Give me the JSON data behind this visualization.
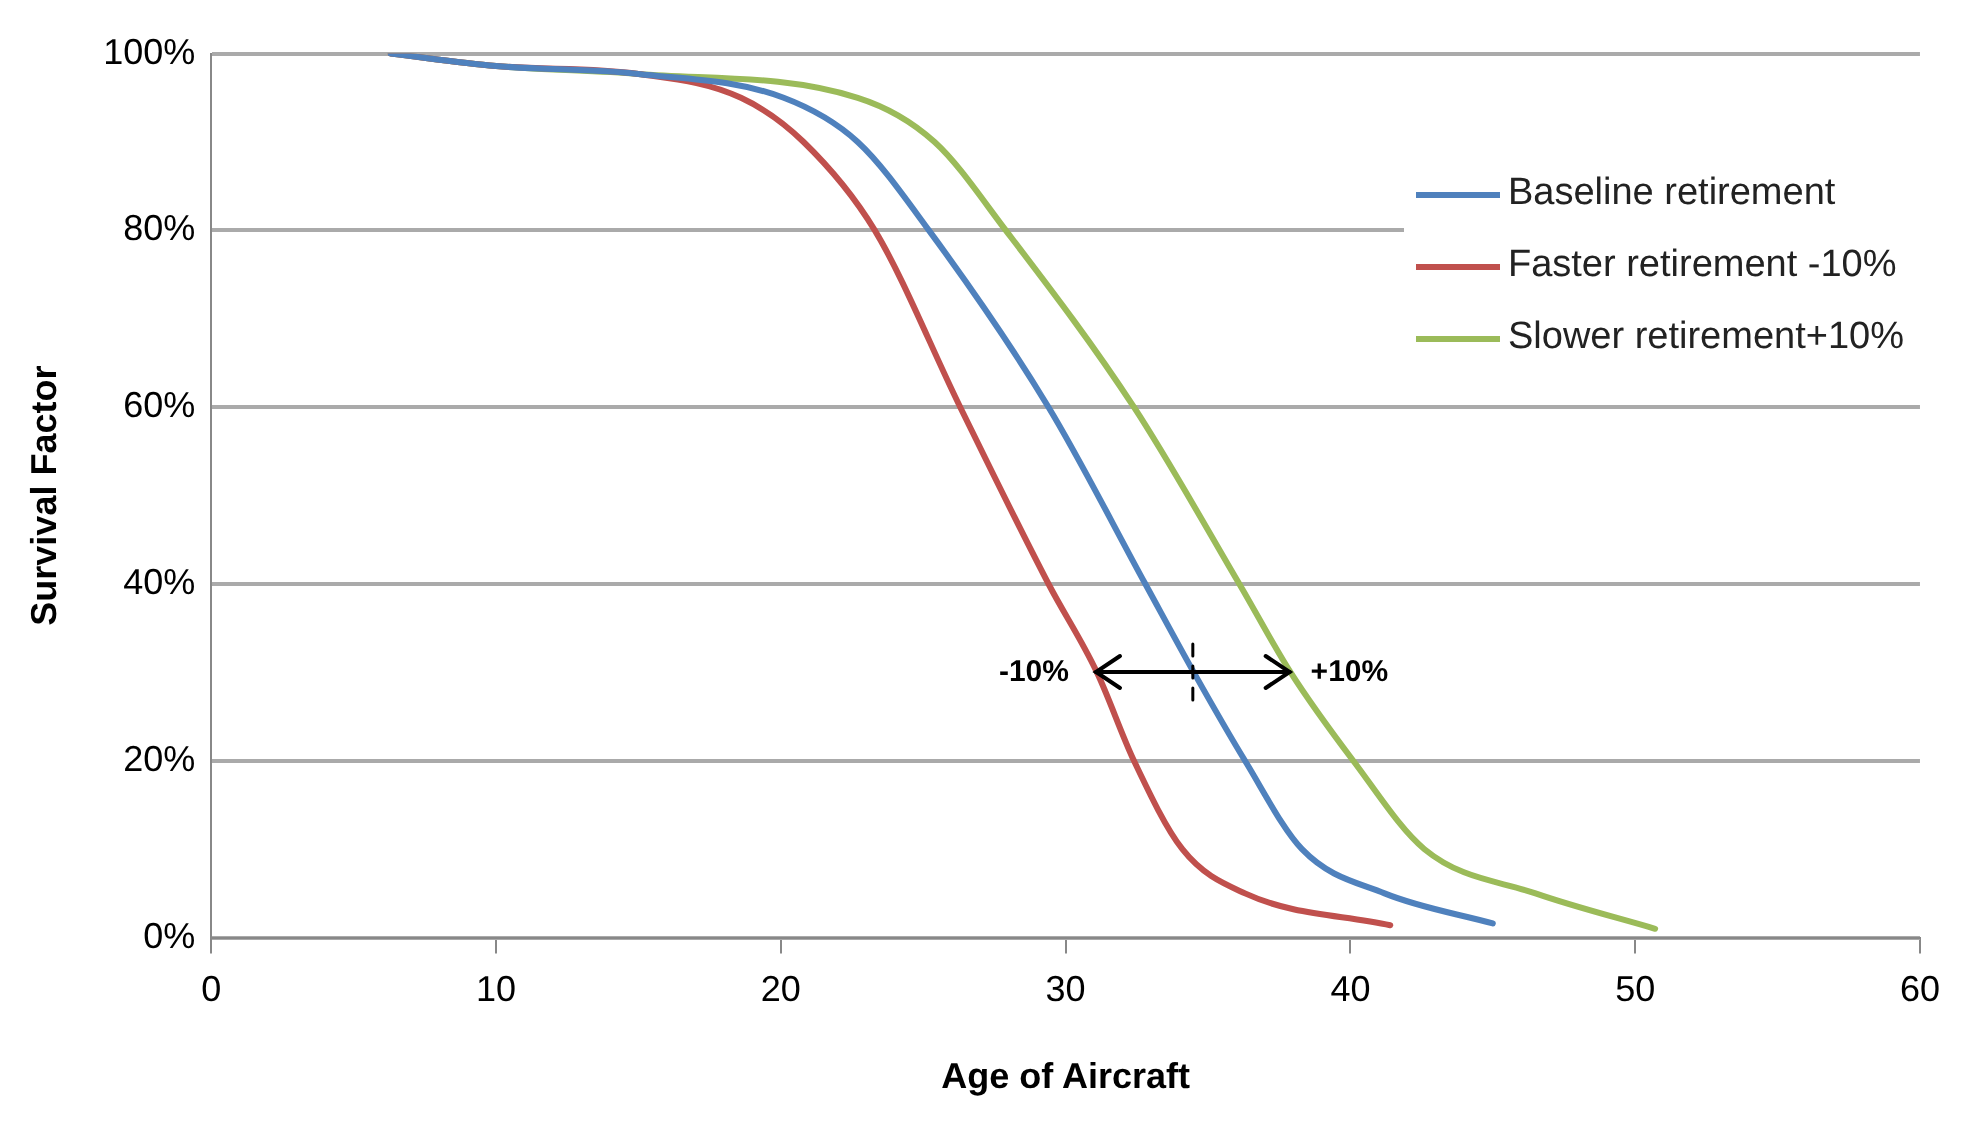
{
  "chart_data": {
    "type": "line",
    "xlabel": "Age of Aircraft",
    "ylabel": "Survival Factor",
    "xlim": [
      0,
      60
    ],
    "xticks": [
      0,
      10,
      20,
      30,
      40,
      50,
      60
    ],
    "ylim": [
      0,
      100
    ],
    "yticks": [
      {
        "value": 0,
        "label": "0%"
      },
      {
        "value": 20,
        "label": "20%"
      },
      {
        "value": 40,
        "label": "40%"
      },
      {
        "value": 60,
        "label": "60%"
      },
      {
        "value": 80,
        "label": "80%"
      },
      {
        "value": 100,
        "label": "100%"
      }
    ],
    "grid": "y",
    "legend": "top right",
    "marker": "none",
    "line_style": "solid",
    "series": [
      {
        "name": "Baseline retirement",
        "color": "#4f81bd",
        "x": [
          6.3,
          10,
          15,
          20.1,
          22.7,
          25.2,
          29.4,
          32.8,
          34.5,
          36.3,
          38.3,
          41.2,
          45
        ],
        "values": [
          100,
          98.6,
          97.7,
          95,
          90,
          80,
          60,
          40,
          30,
          20,
          10,
          5,
          1.6
        ]
      },
      {
        "name": "Faster retirement -10%",
        "color": "#c0504d",
        "x": [
          6.3,
          10,
          15,
          18.6,
          20.8,
          23.3,
          26.3,
          29.4,
          31.1,
          32.4,
          34.1,
          36.3,
          41.4
        ],
        "values": [
          100,
          98.6,
          97.7,
          95,
          90,
          80,
          60,
          40,
          30,
          20,
          10,
          5,
          1.4
        ]
      },
      {
        "name": "Slower retirement+10%",
        "color": "#9bbb59",
        "x": [
          6.3,
          10,
          15,
          22.7,
          25.4,
          27.9,
          32.4,
          36.1,
          37.9,
          40.1,
          42.6,
          46.5,
          50.7
        ],
        "values": [
          100,
          98.6,
          97.7,
          95,
          90,
          80,
          60,
          40,
          30,
          20,
          10,
          5,
          1.0
        ]
      }
    ],
    "annotations": [
      {
        "text": "-10%",
        "x": 31.1,
        "y": 30
      },
      {
        "text": "+10%",
        "x": 37.9,
        "y": 30
      }
    ]
  }
}
